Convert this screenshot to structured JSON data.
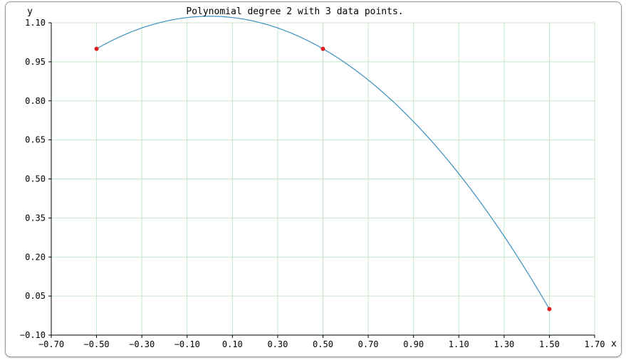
{
  "chart_data": {
    "type": "line",
    "title": "Polynomial degree 2 with 3 data points.",
    "xlabel": "x",
    "ylabel": "y",
    "xlim": [
      -0.7,
      1.7
    ],
    "ylim": [
      -0.1,
      1.1
    ],
    "x_ticks": [
      "-0.70",
      "-0.50",
      "-0.30",
      "-0.10",
      "0.10",
      "0.30",
      "0.50",
      "0.70",
      "0.90",
      "1.10",
      "1.30",
      "1.50",
      "1.70"
    ],
    "y_ticks": [
      "1.10",
      "0.95",
      "0.80",
      "0.65",
      "0.50",
      "0.35",
      "0.20",
      "0.05",
      "-0.10"
    ],
    "grid": true,
    "grid_color": "#c8e6c9",
    "curve": {
      "coefficients": {
        "a": -0.5,
        "b": -0.0,
        "c": 1.125
      },
      "note_form": "y = c + b*x + a*x^2",
      "x_range": [
        -0.5,
        1.5
      ],
      "color": "#3a8fc0"
    },
    "points": {
      "color": "#e02020",
      "x": [
        -0.5,
        0.5,
        1.5
      ],
      "y": [
        1.0,
        1.0,
        0.0
      ]
    }
  }
}
